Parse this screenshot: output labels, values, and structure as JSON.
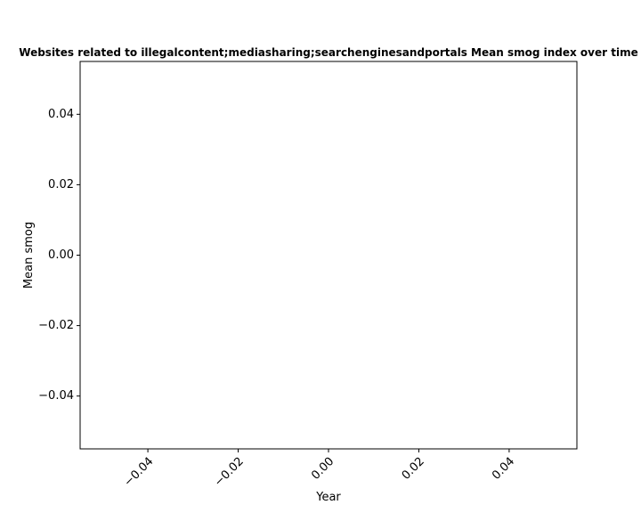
{
  "chart_data": {
    "type": "line",
    "title": "Websites related to illegalcontent;mediasharing;searchenginesandportals Mean smog index over time",
    "xlabel": "Year",
    "ylabel": "Mean smog",
    "xlim": [
      -0.055,
      0.055
    ],
    "ylim": [
      -0.055,
      0.055
    ],
    "x_ticks": [
      {
        "value": -0.04,
        "label": "−0.04"
      },
      {
        "value": -0.02,
        "label": "−0.02"
      },
      {
        "value": 0.0,
        "label": "0.00"
      },
      {
        "value": 0.02,
        "label": "0.02"
      },
      {
        "value": 0.04,
        "label": "0.04"
      }
    ],
    "y_ticks": [
      {
        "value": 0.04,
        "label": "0.04"
      },
      {
        "value": 0.02,
        "label": "0.02"
      },
      {
        "value": 0.0,
        "label": "0.00"
      },
      {
        "value": -0.02,
        "label": "−0.02"
      },
      {
        "value": -0.04,
        "label": "−0.04"
      }
    ],
    "x_tick_rotation_deg": 45,
    "grid": false,
    "series": []
  }
}
